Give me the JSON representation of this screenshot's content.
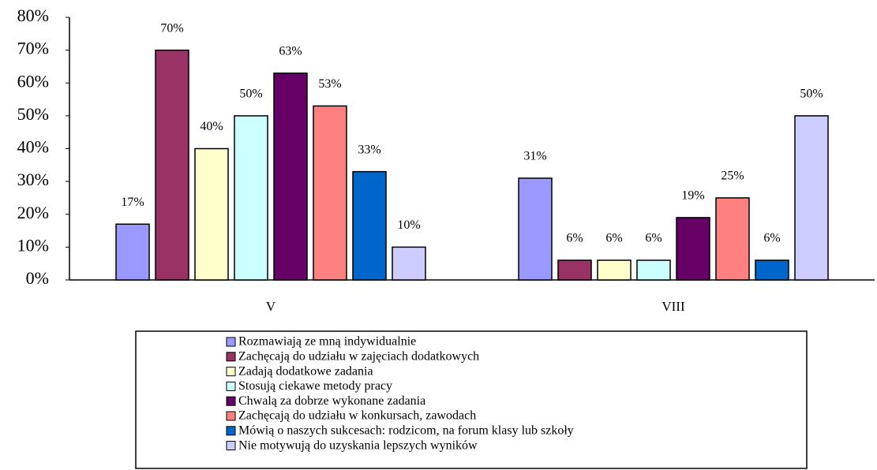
{
  "chart_data": {
    "type": "bar",
    "categories": [
      "V",
      "VIII"
    ],
    "series": [
      {
        "name": "Rozmawiają ze mną indywidualnie",
        "color": "#9999ff",
        "values": [
          17,
          31
        ],
        "value_labels": [
          "17%",
          "31%"
        ]
      },
      {
        "name": "Zachęcają do udziału w zajęciach dodatkowych",
        "color": "#993366",
        "values": [
          70,
          6
        ],
        "value_labels": [
          "70%",
          "6%"
        ]
      },
      {
        "name": "Zadają dodatkowe zadania",
        "color": "#ffffcc",
        "values": [
          40,
          6
        ],
        "value_labels": [
          "40%",
          "6%"
        ]
      },
      {
        "name": "Stosują ciekawe metody pracy",
        "color": "#ccffff",
        "values": [
          50,
          6
        ],
        "value_labels": [
          "50%",
          "6%"
        ]
      },
      {
        "name": "Chwalą za dobrze wykonane zadania",
        "color": "#660066",
        "values": [
          63,
          19
        ],
        "value_labels": [
          "63%",
          "19%"
        ]
      },
      {
        "name": "Zachęcają do udziału w konkursach, zawodach",
        "color": "#ff8080",
        "values": [
          53,
          25
        ],
        "value_labels": [
          "53%",
          "25%"
        ]
      },
      {
        "name": "Mówią o naszych sukcesach: rodzicom, na forum klasy lub szkoły",
        "color": "#0066cc",
        "values": [
          33,
          6
        ],
        "value_labels": [
          "33%",
          "6%"
        ]
      },
      {
        "name": "Nie motywują do uzyskania lepszych wyników",
        "color": "#ccccff",
        "values": [
          10,
          50
        ],
        "value_labels": [
          "10%",
          "50%"
        ]
      }
    ],
    "ylim": [
      0,
      80
    ],
    "yticks": [
      {
        "value": 0,
        "label": "0%"
      },
      {
        "value": 10,
        "label": "10%"
      },
      {
        "value": 20,
        "label": "20%"
      },
      {
        "value": 30,
        "label": "30%"
      },
      {
        "value": 40,
        "label": "40%"
      },
      {
        "value": 50,
        "label": "50%"
      },
      {
        "value": 60,
        "label": "60%"
      },
      {
        "value": 70,
        "label": "70%"
      },
      {
        "value": 80,
        "label": "80%"
      }
    ],
    "grid": false,
    "legend": "bottom"
  }
}
